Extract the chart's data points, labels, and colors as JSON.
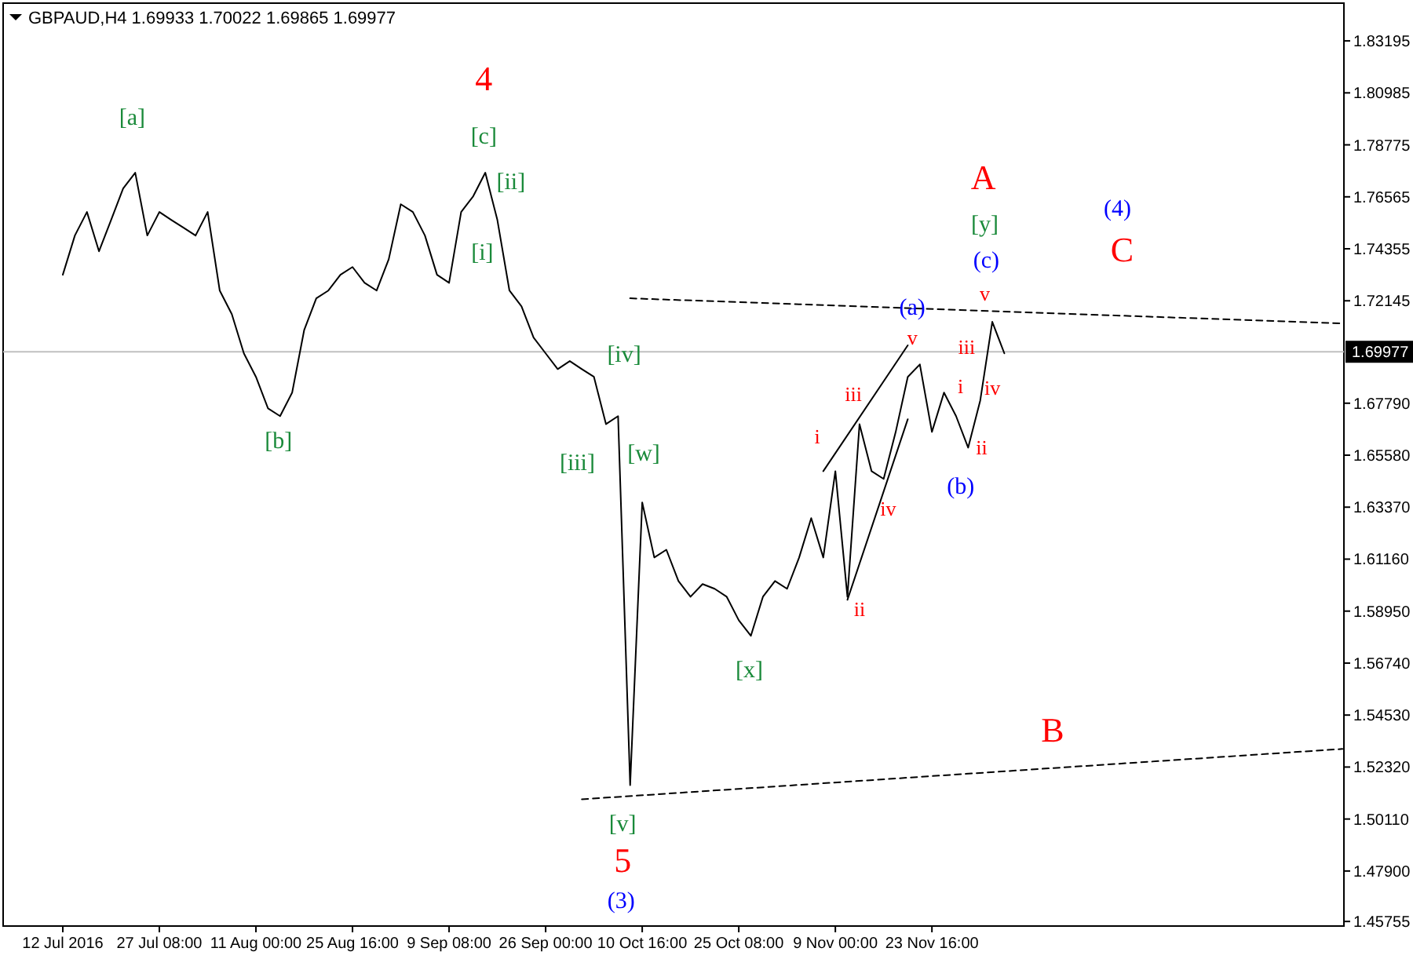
{
  "chart_data": {
    "type": "line",
    "title": "GBPAUD,H4  1.69933 1.70022 1.69865 1.69977",
    "categories": [
      "12 Jul 2016",
      null,
      null,
      null,
      null,
      null,
      null,
      null,
      "27 Jul 08:00",
      null,
      null,
      null,
      null,
      null,
      null,
      null,
      "11 Aug 00:00",
      null,
      null,
      null,
      null,
      null,
      null,
      null,
      "25 Aug 16:00",
      null,
      null,
      null,
      null,
      null,
      null,
      null,
      "9 Sep 08:00",
      null,
      null,
      null,
      null,
      null,
      null,
      null,
      "26 Sep 00:00",
      null,
      null,
      null,
      null,
      null,
      null,
      null,
      "10 Oct 16:00",
      null,
      null,
      null,
      null,
      null,
      null,
      null,
      "25 Oct 08:00",
      null,
      null,
      null,
      null,
      null,
      null,
      null,
      "9 Nov 00:00",
      null,
      null,
      null,
      null,
      null,
      null,
      null,
      "23 Nov 16:00",
      null,
      null,
      null,
      null,
      null,
      null,
      null,
      null,
      null,
      null,
      null,
      null,
      null,
      null,
      null,
      null,
      null,
      null,
      null,
      null,
      null,
      null,
      null,
      null,
      null,
      null,
      null,
      null,
      null,
      null,
      null,
      null,
      null,
      null
    ],
    "ylim": [
      1.4556,
      1.848
    ],
    "yticks": [
      {
        "value": 1.45755,
        "label": "1.45755"
      },
      {
        "value": 1.479,
        "label": "1.47900"
      },
      {
        "value": 1.5011,
        "label": "1.50110"
      },
      {
        "value": 1.5232,
        "label": "1.52320"
      },
      {
        "value": 1.5453,
        "label": "1.54530"
      },
      {
        "value": 1.5674,
        "label": "1.56740"
      },
      {
        "value": 1.5895,
        "label": "1.58950"
      },
      {
        "value": 1.6116,
        "label": "1.61160"
      },
      {
        "value": 1.6337,
        "label": "1.63370"
      },
      {
        "value": 1.6558,
        "label": "1.65580"
      },
      {
        "value": 1.6779,
        "label": "1.67790"
      },
      {
        "value": 1.72145,
        "label": "1.72145"
      },
      {
        "value": 1.74355,
        "label": "1.74355"
      },
      {
        "value": 1.76565,
        "label": "1.76565"
      },
      {
        "value": 1.78775,
        "label": "1.78775"
      },
      {
        "value": 1.80985,
        "label": "1.80985"
      },
      {
        "value": 1.83195,
        "label": "1.83195"
      }
    ],
    "ref_lines": [
      {
        "axis": "y",
        "value": 1.69977,
        "label": "1.69977",
        "color": "#c0c0c0"
      }
    ],
    "series": [
      {
        "color": "#000000",
        "line_style": "solid",
        "values": [
          1.7325,
          1.7492,
          1.7592,
          1.7425,
          1.7558,
          1.7692,
          1.7759,
          1.7492,
          1.7592,
          1.7558,
          1.7525,
          1.7492,
          1.7592,
          1.7258,
          1.7158,
          1.6991,
          1.6891,
          1.6757,
          1.6724,
          1.6824,
          1.7091,
          1.7225,
          1.7258,
          1.7325,
          1.7358,
          1.7291,
          1.7258,
          1.7391,
          1.7625,
          1.7592,
          1.7492,
          1.7325,
          1.7291,
          1.7592,
          1.7659,
          1.7759,
          1.7558,
          1.7258,
          1.7191,
          1.7058,
          1.6991,
          1.6924,
          1.6958,
          1.6924,
          1.6891,
          1.669,
          1.6724,
          1.5155,
          1.6357,
          1.6123,
          1.6156,
          1.6023,
          1.5956,
          1.601,
          1.599,
          1.5956,
          1.5856,
          1.579,
          1.5956,
          1.6023,
          1.599,
          1.6123,
          1.629,
          1.6123,
          1.649,
          1.5956,
          1.669,
          1.649,
          1.6457,
          1.6657,
          1.6891,
          1.6944,
          1.6657,
          1.6824,
          1.6724,
          1.659,
          1.679,
          1.7125,
          1.6991,
          null,
          null,
          null,
          null,
          null,
          null,
          null,
          null,
          null,
          null,
          null,
          null,
          null,
          null,
          null,
          null,
          null,
          null,
          null,
          null,
          null,
          null,
          null,
          null,
          null,
          null,
          null,
          null
        ]
      },
      {
        "color": "#000000",
        "line_style": "dashed",
        "values": [
          null,
          null,
          null,
          null,
          null,
          null,
          null,
          null,
          null,
          null,
          null,
          null,
          null,
          null,
          null,
          null,
          null,
          null,
          null,
          null,
          null,
          null,
          null,
          null,
          null,
          null,
          null,
          null,
          null,
          null,
          null,
          null,
          null,
          null,
          null,
          null,
          null,
          null,
          null,
          null,
          null,
          null,
          null,
          null,
          null,
          null,
          null,
          1.7225,
          null,
          null,
          null,
          null,
          null,
          null,
          null,
          null,
          null,
          null,
          null,
          null,
          null,
          null,
          null,
          null,
          null,
          null,
          null,
          null,
          null,
          null,
          null,
          null,
          null,
          null,
          null,
          null,
          null,
          null,
          null,
          null,
          null,
          null,
          null,
          null,
          null,
          null,
          null,
          null,
          null,
          null,
          null,
          null,
          null,
          null,
          null,
          null,
          null,
          null,
          null,
          null,
          null,
          null,
          null,
          null,
          null,
          null,
          1.7118
        ]
      },
      {
        "color": "#000000",
        "line_style": "dashed",
        "values": [
          null,
          null,
          null,
          null,
          null,
          null,
          null,
          null,
          null,
          null,
          null,
          null,
          null,
          null,
          null,
          null,
          null,
          null,
          null,
          null,
          null,
          null,
          null,
          null,
          null,
          null,
          null,
          null,
          null,
          null,
          null,
          null,
          null,
          null,
          null,
          null,
          null,
          null,
          null,
          null,
          null,
          null,
          null,
          1.5095,
          null,
          null,
          null,
          null,
          null,
          null,
          null,
          null,
          null,
          null,
          null,
          null,
          null,
          null,
          null,
          null,
          null,
          null,
          null,
          null,
          null,
          null,
          null,
          null,
          null,
          null,
          null,
          null,
          null,
          null,
          null,
          null,
          null,
          null,
          null,
          null,
          null,
          null,
          null,
          null,
          null,
          null,
          null,
          null,
          null,
          null,
          null,
          null,
          null,
          null,
          null,
          null,
          null,
          null,
          null,
          null,
          null,
          null,
          null,
          null,
          null,
          null,
          1.5309
        ]
      },
      {
        "color": "#000000",
        "line_style": "solid",
        "values": [
          null,
          null,
          null,
          null,
          null,
          null,
          null,
          null,
          null,
          null,
          null,
          null,
          null,
          null,
          null,
          null,
          null,
          null,
          null,
          null,
          null,
          null,
          null,
          null,
          null,
          null,
          null,
          null,
          null,
          null,
          null,
          null,
          null,
          null,
          null,
          null,
          null,
          null,
          null,
          null,
          null,
          null,
          null,
          null,
          null,
          null,
          null,
          null,
          null,
          null,
          null,
          null,
          null,
          null,
          null,
          null,
          null,
          null,
          null,
          null,
          null,
          null,
          null,
          1.649,
          null,
          null,
          null,
          null,
          null,
          null,
          1.7025,
          null,
          null,
          null,
          null,
          null,
          null,
          null,
          null,
          null,
          null,
          null,
          null,
          null,
          null,
          null,
          null,
          null,
          null,
          null,
          null,
          null,
          null,
          null,
          null,
          null,
          null,
          null,
          null,
          null,
          null,
          null,
          null,
          null,
          null,
          null,
          null
        ]
      },
      {
        "color": "#000000",
        "line_style": "solid",
        "values": [
          null,
          null,
          null,
          null,
          null,
          null,
          null,
          null,
          null,
          null,
          null,
          null,
          null,
          null,
          null,
          null,
          null,
          null,
          null,
          null,
          null,
          null,
          null,
          null,
          null,
          null,
          null,
          null,
          null,
          null,
          null,
          null,
          null,
          null,
          null,
          null,
          null,
          null,
          null,
          null,
          null,
          null,
          null,
          null,
          null,
          null,
          null,
          null,
          null,
          null,
          null,
          null,
          null,
          null,
          null,
          null,
          null,
          null,
          null,
          null,
          null,
          null,
          null,
          null,
          null,
          1.5943,
          null,
          null,
          null,
          null,
          1.6711,
          null,
          null,
          null,
          null,
          null,
          null,
          null,
          null,
          null,
          null,
          null,
          null,
          null,
          null,
          null,
          null,
          null,
          null,
          null,
          null,
          null,
          null,
          null,
          null,
          null,
          null,
          null,
          null,
          null,
          null,
          null,
          null,
          null,
          null,
          null,
          null
        ]
      }
    ],
    "annotations": [
      "[a]",
      "4",
      "[c]",
      "[ii]",
      "[i]",
      "[b]",
      "[iv]",
      "[w]",
      "[iii]",
      "[x]",
      "[v]",
      "5",
      "(3)",
      "A",
      "[y]",
      "(c)",
      "v",
      "(a)",
      "v",
      "iii",
      "i",
      "iv",
      "ii",
      "(4)",
      "C",
      "(b)",
      "B",
      "i",
      "iii",
      "iv",
      "ii"
    ]
  }
}
